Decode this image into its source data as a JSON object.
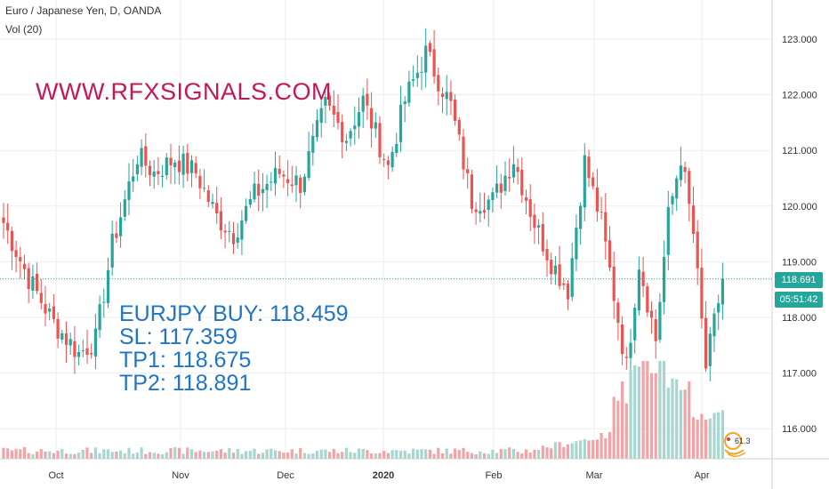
{
  "header": {
    "title": "Euro / Japanese Yen, D, OANDA",
    "volume_indicator": "Vol (20)"
  },
  "watermark": "WWW.RFXSIGNALS.COM",
  "signal": {
    "line1": "EURJPY BUY: 118.459",
    "line2": "SL: 117.359",
    "line3": "TP1: 118.675",
    "line4": "TP2: 118.891"
  },
  "price_tag": "118.691",
  "countdown_tag": "05:51:42",
  "logo_text": "61.3",
  "colors": {
    "up": "#26a69a",
    "down": "#ef5350",
    "vol_up": "#a5d6cf",
    "vol_down": "#f3a3a6",
    "grid": "#eeeeee",
    "watermark": "#c2185b",
    "signal_text": "#1e74c8"
  },
  "chart_data": {
    "type": "candlestick",
    "title": "Euro / Japanese Yen, D, OANDA",
    "y_axis_ticks": [
      "123.000",
      "122.000",
      "121.000",
      "120.000",
      "119.000",
      "118.000",
      "117.000",
      "116.000"
    ],
    "ylim": [
      115.5,
      123.6
    ],
    "x_axis_ticks": [
      "Oct",
      "Nov",
      "Dec",
      "2020",
      "Feb",
      "Mar",
      "Apr"
    ],
    "last_price": 118.691,
    "grid": true,
    "volume_shown": true,
    "trend_anchor_closes": [
      [
        0,
        119.7
      ],
      [
        6,
        118.7
      ],
      [
        12,
        117.9
      ],
      [
        18,
        117.35
      ],
      [
        22,
        117.6
      ],
      [
        26,
        119.3
      ],
      [
        32,
        120.9
      ],
      [
        36,
        120.6
      ],
      [
        41,
        120.85
      ],
      [
        46,
        120.6
      ],
      [
        51,
        119.8
      ],
      [
        55,
        119.5
      ],
      [
        60,
        120.2
      ],
      [
        66,
        120.6
      ],
      [
        71,
        120.4
      ],
      [
        77,
        121.8
      ],
      [
        82,
        121.25
      ],
      [
        86,
        121.9
      ],
      [
        92,
        120.7
      ],
      [
        96,
        121.9
      ],
      [
        101,
        122.75
      ],
      [
        107,
        121.8
      ],
      [
        112,
        120.1
      ],
      [
        117,
        120.1
      ],
      [
        122,
        120.85
      ],
      [
        127,
        119.7
      ],
      [
        131,
        119.0
      ],
      [
        135,
        118.5
      ],
      [
        139,
        120.8
      ],
      [
        143,
        119.7
      ],
      [
        146,
        118.4
      ],
      [
        149,
        117.1
      ],
      [
        152,
        119.0
      ],
      [
        156,
        117.6
      ],
      [
        159,
        119.8
      ],
      [
        162,
        120.9
      ],
      [
        165,
        119.5
      ],
      [
        168,
        117.1
      ],
      [
        172,
        118.691
      ]
    ]
  }
}
